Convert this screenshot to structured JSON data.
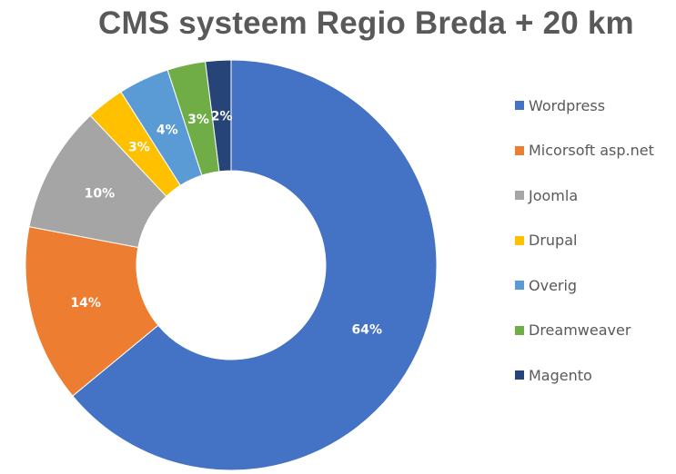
{
  "chart_data": {
    "type": "pie",
    "subtype": "donut",
    "title": "CMS systeem Regio Breda + 20 km",
    "categories": [
      "Wordpress",
      "Micorsoft asp.net",
      "Joomla",
      "Drupal",
      "Overig",
      "Dreamweaver",
      "Magento"
    ],
    "values": [
      64,
      14,
      10,
      3,
      4,
      3,
      2
    ],
    "labels": [
      "64%",
      "14%",
      "10%",
      "3%",
      "4%",
      "3%",
      "2%"
    ],
    "colors": [
      "#4472C4",
      "#ED7D31",
      "#A5A5A5",
      "#FFC000",
      "#5B9BD5",
      "#70AD47",
      "#264478"
    ],
    "legend_position": "right",
    "start_angle": "12 o'clock",
    "direction": "clockwise"
  },
  "title": "CMS systeem Regio Breda + 20 km",
  "legend": [
    {
      "label": "Wordpress",
      "color": "#4472C4"
    },
    {
      "label": "Micorsoft asp.net",
      "color": "#ED7D31"
    },
    {
      "label": "Joomla",
      "color": "#A5A5A5"
    },
    {
      "label": "Drupal",
      "color": "#FFC000"
    },
    {
      "label": "Overig",
      "color": "#5B9BD5"
    },
    {
      "label": "Dreamweaver",
      "color": "#70AD47"
    },
    {
      "label": "Magento",
      "color": "#264478"
    }
  ]
}
